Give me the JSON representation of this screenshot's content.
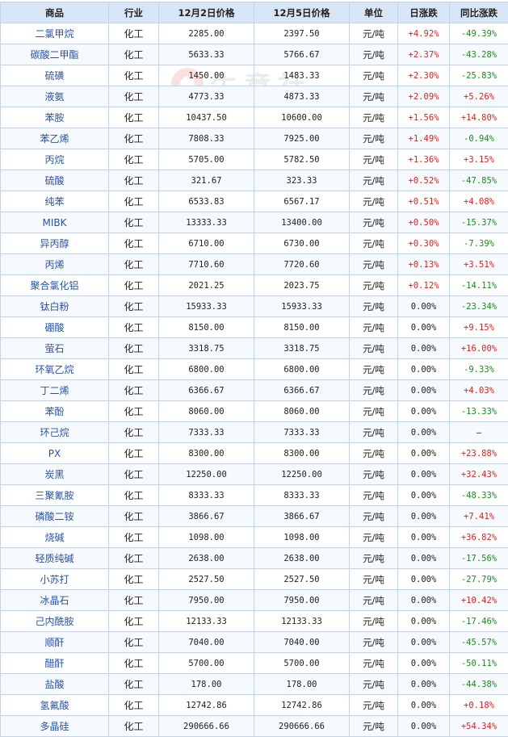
{
  "watermark": {
    "brand": "生意社",
    "url": "100ppi.com"
  },
  "headers": {
    "name": "商品",
    "industry": "行业",
    "price1": "12月2日价格",
    "price2": "12月5日价格",
    "unit": "单位",
    "daily": "日涨跌",
    "yoy": "同比涨跌"
  },
  "colors": {
    "up": "#e02020",
    "down": "#1d8a22",
    "header_bg": "#d7e5f7",
    "name_link": "#2a52a3"
  },
  "rows": [
    {
      "name": "二氯甲烷",
      "industry": "化工",
      "p1": "2285.00",
      "p2": "2397.50",
      "unit": "元/吨",
      "daily": "+4.92%",
      "yoy": "-49.39%"
    },
    {
      "name": "碳酸二甲酯",
      "industry": "化工",
      "p1": "5633.33",
      "p2": "5766.67",
      "unit": "元/吨",
      "daily": "+2.37%",
      "yoy": "-43.28%"
    },
    {
      "name": "硫磺",
      "industry": "化工",
      "p1": "1450.00",
      "p2": "1483.33",
      "unit": "元/吨",
      "daily": "+2.30%",
      "yoy": "-25.83%"
    },
    {
      "name": "液氨",
      "industry": "化工",
      "p1": "4773.33",
      "p2": "4873.33",
      "unit": "元/吨",
      "daily": "+2.09%",
      "yoy": "+5.26%"
    },
    {
      "name": "苯胺",
      "industry": "化工",
      "p1": "10437.50",
      "p2": "10600.00",
      "unit": "元/吨",
      "daily": "+1.56%",
      "yoy": "+14.80%"
    },
    {
      "name": "苯乙烯",
      "industry": "化工",
      "p1": "7808.33",
      "p2": "7925.00",
      "unit": "元/吨",
      "daily": "+1.49%",
      "yoy": "-0.94%"
    },
    {
      "name": "丙烷",
      "industry": "化工",
      "p1": "5705.00",
      "p2": "5782.50",
      "unit": "元/吨",
      "daily": "+1.36%",
      "yoy": "+3.15%"
    },
    {
      "name": "硫酸",
      "industry": "化工",
      "p1": "321.67",
      "p2": "323.33",
      "unit": "元/吨",
      "daily": "+0.52%",
      "yoy": "-47.85%"
    },
    {
      "name": "纯苯",
      "industry": "化工",
      "p1": "6533.83",
      "p2": "6567.17",
      "unit": "元/吨",
      "daily": "+0.51%",
      "yoy": "+4.08%"
    },
    {
      "name": "MIBK",
      "industry": "化工",
      "p1": "13333.33",
      "p2": "13400.00",
      "unit": "元/吨",
      "daily": "+0.50%",
      "yoy": "-15.37%"
    },
    {
      "name": "异丙醇",
      "industry": "化工",
      "p1": "6710.00",
      "p2": "6730.00",
      "unit": "元/吨",
      "daily": "+0.30%",
      "yoy": "-7.39%"
    },
    {
      "name": "丙烯",
      "industry": "化工",
      "p1": "7710.60",
      "p2": "7720.60",
      "unit": "元/吨",
      "daily": "+0.13%",
      "yoy": "+3.51%"
    },
    {
      "name": "聚合氯化铝",
      "industry": "化工",
      "p1": "2021.25",
      "p2": "2023.75",
      "unit": "元/吨",
      "daily": "+0.12%",
      "yoy": "-14.11%"
    },
    {
      "name": "钛白粉",
      "industry": "化工",
      "p1": "15933.33",
      "p2": "15933.33",
      "unit": "元/吨",
      "daily": "0.00%",
      "yoy": "-23.34%"
    },
    {
      "name": "硼酸",
      "industry": "化工",
      "p1": "8150.00",
      "p2": "8150.00",
      "unit": "元/吨",
      "daily": "0.00%",
      "yoy": "+9.15%"
    },
    {
      "name": "萤石",
      "industry": "化工",
      "p1": "3318.75",
      "p2": "3318.75",
      "unit": "元/吨",
      "daily": "0.00%",
      "yoy": "+16.00%"
    },
    {
      "name": "环氧乙烷",
      "industry": "化工",
      "p1": "6800.00",
      "p2": "6800.00",
      "unit": "元/吨",
      "daily": "0.00%",
      "yoy": "-9.33%"
    },
    {
      "name": "丁二烯",
      "industry": "化工",
      "p1": "6366.67",
      "p2": "6366.67",
      "unit": "元/吨",
      "daily": "0.00%",
      "yoy": "+4.03%"
    },
    {
      "name": "苯酚",
      "industry": "化工",
      "p1": "8060.00",
      "p2": "8060.00",
      "unit": "元/吨",
      "daily": "0.00%",
      "yoy": "-13.33%"
    },
    {
      "name": "环己烷",
      "industry": "化工",
      "p1": "7333.33",
      "p2": "7333.33",
      "unit": "元/吨",
      "daily": "0.00%",
      "yoy": "—"
    },
    {
      "name": "PX",
      "industry": "化工",
      "p1": "8300.00",
      "p2": "8300.00",
      "unit": "元/吨",
      "daily": "0.00%",
      "yoy": "+23.88%"
    },
    {
      "name": "炭黑",
      "industry": "化工",
      "p1": "12250.00",
      "p2": "12250.00",
      "unit": "元/吨",
      "daily": "0.00%",
      "yoy": "+32.43%"
    },
    {
      "name": "三聚氰胺",
      "industry": "化工",
      "p1": "8333.33",
      "p2": "8333.33",
      "unit": "元/吨",
      "daily": "0.00%",
      "yoy": "-48.33%"
    },
    {
      "name": "磷酸二铵",
      "industry": "化工",
      "p1": "3866.67",
      "p2": "3866.67",
      "unit": "元/吨",
      "daily": "0.00%",
      "yoy": "+7.41%"
    },
    {
      "name": "烧碱",
      "industry": "化工",
      "p1": "1098.00",
      "p2": "1098.00",
      "unit": "元/吨",
      "daily": "0.00%",
      "yoy": "+36.82%"
    },
    {
      "name": "轻质纯碱",
      "industry": "化工",
      "p1": "2638.00",
      "p2": "2638.00",
      "unit": "元/吨",
      "daily": "0.00%",
      "yoy": "-17.56%"
    },
    {
      "name": "小苏打",
      "industry": "化工",
      "p1": "2527.50",
      "p2": "2527.50",
      "unit": "元/吨",
      "daily": "0.00%",
      "yoy": "-27.79%"
    },
    {
      "name": "冰晶石",
      "industry": "化工",
      "p1": "7950.00",
      "p2": "7950.00",
      "unit": "元/吨",
      "daily": "0.00%",
      "yoy": "+10.42%"
    },
    {
      "name": "己内酰胺",
      "industry": "化工",
      "p1": "12133.33",
      "p2": "12133.33",
      "unit": "元/吨",
      "daily": "0.00%",
      "yoy": "-17.46%"
    },
    {
      "name": "顺酐",
      "industry": "化工",
      "p1": "7040.00",
      "p2": "7040.00",
      "unit": "元/吨",
      "daily": "0.00%",
      "yoy": "-45.57%"
    },
    {
      "name": "醋酐",
      "industry": "化工",
      "p1": "5700.00",
      "p2": "5700.00",
      "unit": "元/吨",
      "daily": "0.00%",
      "yoy": "-50.11%"
    },
    {
      "name": "盐酸",
      "industry": "化工",
      "p1": "178.00",
      "p2": "178.00",
      "unit": "元/吨",
      "daily": "0.00%",
      "yoy": "-44.38%"
    },
    {
      "name": "氢氟酸",
      "industry": "化工",
      "p1": "12742.86",
      "p2": "12742.86",
      "unit": "元/吨",
      "daily": "0.00%",
      "yoy": "+0.18%"
    },
    {
      "name": "多晶硅",
      "industry": "化工",
      "p1": "290666.66",
      "p2": "290666.66",
      "unit": "元/吨",
      "daily": "0.00%",
      "yoy": "+54.34%"
    }
  ]
}
